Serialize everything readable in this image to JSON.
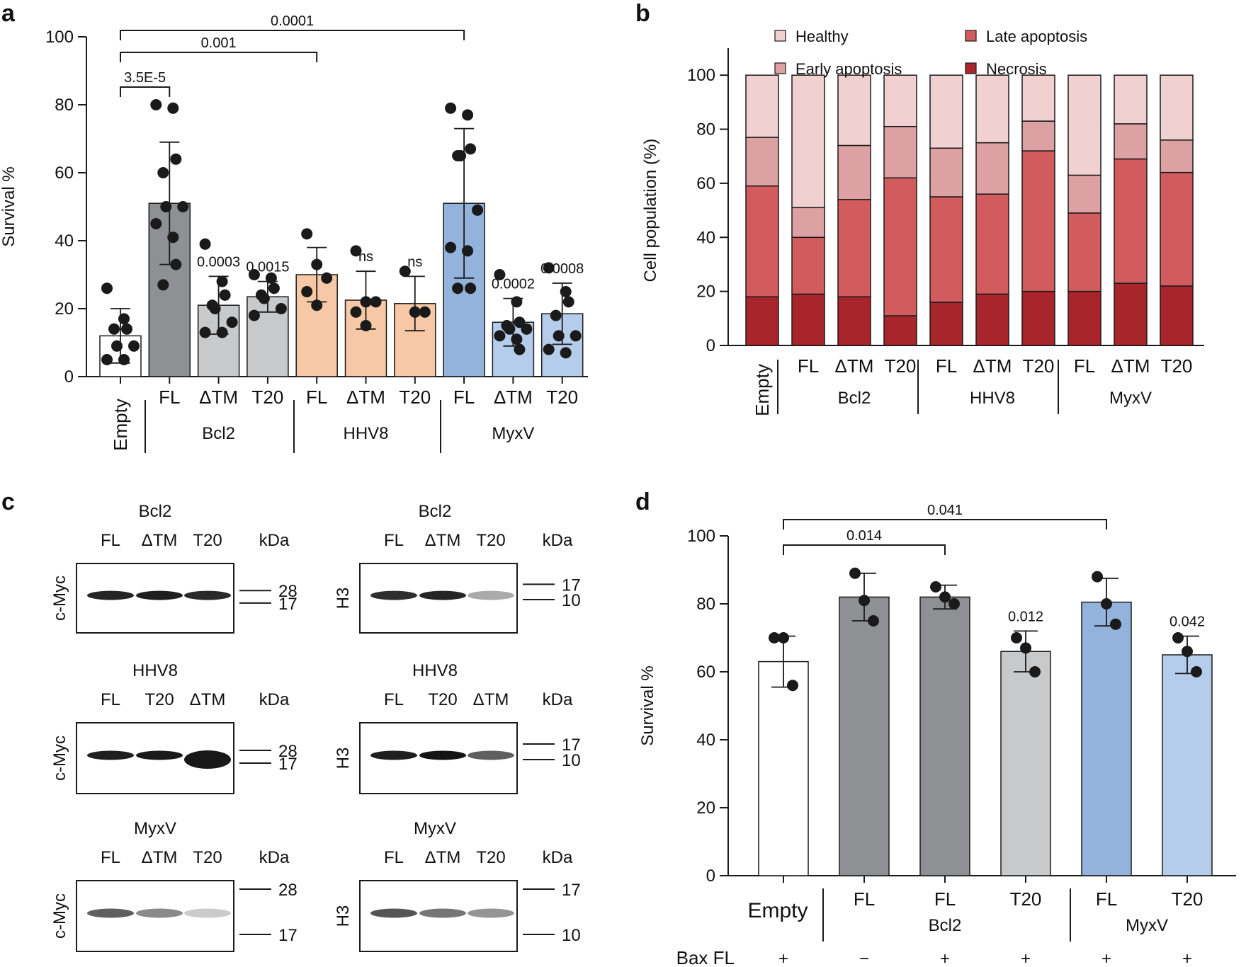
{
  "figure": {
    "panel_letters": [
      "a",
      "b",
      "c",
      "d"
    ]
  },
  "colors": {
    "empty": "#ffffff",
    "bcl2": "#8f9094",
    "bcl2_light": "#c8c9cb",
    "hhv8": "#f6c8a5",
    "myxv": "#93b3dc",
    "myxv_light": "#b5cdea",
    "healthy": "#f0d0d0",
    "early": "#dea1a3",
    "late": "#d25b5e",
    "necrosis": "#a8252c"
  },
  "chart_data": [
    {
      "panel": "a",
      "type": "bar",
      "ylabel": "Survival %",
      "ylim": [
        0,
        100
      ],
      "yticks": [
        "0",
        "20",
        "40",
        "60",
        "80",
        "100"
      ],
      "bars": [
        {
          "label": "Empty",
          "group": "",
          "mean": 12,
          "sd": 8,
          "color": "empty",
          "points": [
            26,
            17,
            14,
            14,
            9,
            9,
            5,
            5
          ],
          "annotation": ""
        },
        {
          "label": "FL",
          "group": "Bcl2",
          "mean": 51,
          "sd": 18,
          "color": "bcl2",
          "points": [
            80,
            79,
            64,
            60,
            50,
            50,
            45,
            41,
            33,
            27
          ],
          "annotation": ""
        },
        {
          "label": "ΔTM",
          "group": "Bcl2",
          "mean": 21,
          "sd": 8.5,
          "color": "bcl2_light",
          "points": [
            39,
            28,
            24,
            21,
            20,
            16,
            13,
            13
          ],
          "annotation": "0.0003"
        },
        {
          "label": "T20",
          "group": "Bcl2",
          "mean": 23.5,
          "sd": 4.5,
          "color": "bcl2_light",
          "points": [
            30,
            29,
            26,
            24,
            23,
            20,
            18
          ],
          "annotation": "0.0015"
        },
        {
          "label": "FL",
          "group": "HHV8",
          "mean": 30,
          "sd": 8,
          "color": "hhv8",
          "points": [
            42,
            33,
            29,
            25,
            21
          ],
          "annotation": ""
        },
        {
          "label": "ΔTM",
          "group": "HHV8",
          "mean": 22.5,
          "sd": 8.5,
          "color": "hhv8",
          "points": [
            37,
            22,
            22,
            19,
            15
          ],
          "annotation": "ns"
        },
        {
          "label": "T20",
          "group": "HHV8",
          "mean": 21.5,
          "sd": 8,
          "color": "hhv8",
          "points": [
            31,
            19,
            19
          ],
          "annotation": "ns"
        },
        {
          "label": "FL",
          "group": "MyxV",
          "mean": 51,
          "sd": 22,
          "color": "myxv",
          "points": [
            79,
            77,
            67,
            65,
            65,
            49,
            38,
            37,
            26,
            26
          ],
          "annotation": ""
        },
        {
          "label": "ΔTM",
          "group": "MyxV",
          "mean": 16,
          "sd": 7,
          "color": "myxv_light",
          "points": [
            30,
            22,
            16,
            15,
            14,
            14,
            12,
            11,
            8
          ],
          "annotation": "0.0002"
        },
        {
          "label": "T20",
          "group": "MyxV",
          "mean": 18.5,
          "sd": 9,
          "color": "myxv_light",
          "points": [
            32,
            25,
            22,
            18,
            12,
            12,
            8,
            7
          ],
          "annotation": "0.0008"
        }
      ],
      "groups": [
        "Bcl2",
        "HHV8",
        "MyxV"
      ],
      "brackets": [
        {
          "from": 0,
          "to": 1,
          "label": "3.5E-5"
        },
        {
          "from": 0,
          "to": 4,
          "label": "0.001"
        },
        {
          "from": 0,
          "to": 7,
          "label": "0.0001"
        }
      ]
    },
    {
      "panel": "b",
      "type": "bar",
      "stacked": true,
      "ylabel": "Cell population (%)",
      "ylim": [
        0,
        100
      ],
      "yticks": [
        "0",
        "20",
        "40",
        "60",
        "80",
        "100"
      ],
      "categories": [
        "Empty",
        "FL",
        "ΔTM",
        "T20",
        "FL",
        "ΔTM",
        "T20",
        "FL",
        "ΔTM",
        "T20"
      ],
      "groups": [
        "Bcl2",
        "HHV8",
        "MyxV"
      ],
      "legend": [
        "Healthy",
        "Late apoptosis",
        "Early apoptosis",
        "Necrosis"
      ],
      "series": [
        {
          "name": "Necrosis",
          "color": "necrosis",
          "values": [
            18,
            19,
            18,
            11,
            16,
            19,
            20,
            20,
            23,
            22
          ]
        },
        {
          "name": "Late apoptosis",
          "color": "late",
          "values": [
            41,
            21,
            36,
            51,
            39,
            37,
            52,
            29,
            46,
            42
          ]
        },
        {
          "name": "Early apoptosis",
          "color": "early",
          "values": [
            18,
            11,
            20,
            19,
            18,
            19,
            11,
            14,
            13,
            12
          ]
        },
        {
          "name": "Healthy",
          "color": "healthy",
          "values": [
            23,
            49,
            26,
            19,
            27,
            25,
            17,
            37,
            18,
            24
          ]
        }
      ]
    },
    {
      "panel": "d",
      "type": "bar",
      "ylabel": "Survival %",
      "ylim": [
        0,
        100
      ],
      "yticks": [
        "0",
        "20",
        "40",
        "60",
        "80",
        "100"
      ],
      "bars": [
        {
          "label": "Empty",
          "group": "",
          "bax": "+",
          "mean": 63,
          "sd": 7.5,
          "color": "empty",
          "points": [
            70,
            70,
            56
          ],
          "annotation": ""
        },
        {
          "label": "FL",
          "group": "Bcl2",
          "bax": "−",
          "mean": 82,
          "sd": 7,
          "color": "bcl2",
          "points": [
            89,
            81,
            75
          ],
          "annotation": ""
        },
        {
          "label": "FL",
          "group": "Bcl2",
          "bax": "+",
          "mean": 82,
          "sd": 3.5,
          "color": "bcl2",
          "points": [
            85,
            82,
            80
          ],
          "annotation": ""
        },
        {
          "label": "T20",
          "group": "Bcl2",
          "bax": "+",
          "mean": 66,
          "sd": 6,
          "color": "bcl2_light",
          "points": [
            70,
            67,
            60
          ],
          "annotation": "0.012"
        },
        {
          "label": "FL",
          "group": "MyxV",
          "bax": "+",
          "mean": 80.5,
          "sd": 7,
          "color": "myxv",
          "points": [
            88,
            80,
            74
          ],
          "annotation": ""
        },
        {
          "label": "T20",
          "group": "MyxV",
          "bax": "+",
          "mean": 65,
          "sd": 5.5,
          "color": "myxv_light",
          "points": [
            70,
            66,
            60
          ],
          "annotation": "0.042"
        }
      ],
      "groups": [
        "Bcl2",
        "MyxV"
      ],
      "bax_label": "Bax FL",
      "brackets": [
        {
          "from": 0,
          "to": 2,
          "label": "0.014"
        },
        {
          "from": 0,
          "to": 4,
          "label": "0.041"
        }
      ]
    }
  ],
  "blots": [
    {
      "title": "Bcl2",
      "row_label": "c-Myc",
      "lanes": [
        "FL",
        "ΔTM",
        "T20"
      ],
      "markers": [
        "28",
        "17"
      ]
    },
    {
      "title": "Bcl2",
      "row_label": "H3",
      "lanes": [
        "FL",
        "ΔTM",
        "T20"
      ],
      "markers": [
        "17",
        "10"
      ]
    },
    {
      "title": "HHV8",
      "row_label": "c-Myc",
      "lanes": [
        "FL",
        "T20",
        "ΔTM"
      ],
      "markers": [
        "28",
        "17"
      ]
    },
    {
      "title": "HHV8",
      "row_label": "H3",
      "lanes": [
        "FL",
        "T20",
        "ΔTM"
      ],
      "markers": [
        "17",
        "10"
      ]
    },
    {
      "title": "MyxV",
      "row_label": "c-Myc",
      "lanes": [
        "FL",
        "ΔTM",
        "T20"
      ],
      "markers": [
        "28",
        "17"
      ]
    },
    {
      "title": "MyxV",
      "row_label": "H3",
      "lanes": [
        "FL",
        "ΔTM",
        "T20"
      ],
      "markers": [
        "17",
        "10"
      ]
    }
  ],
  "blot_unit": "kDa"
}
